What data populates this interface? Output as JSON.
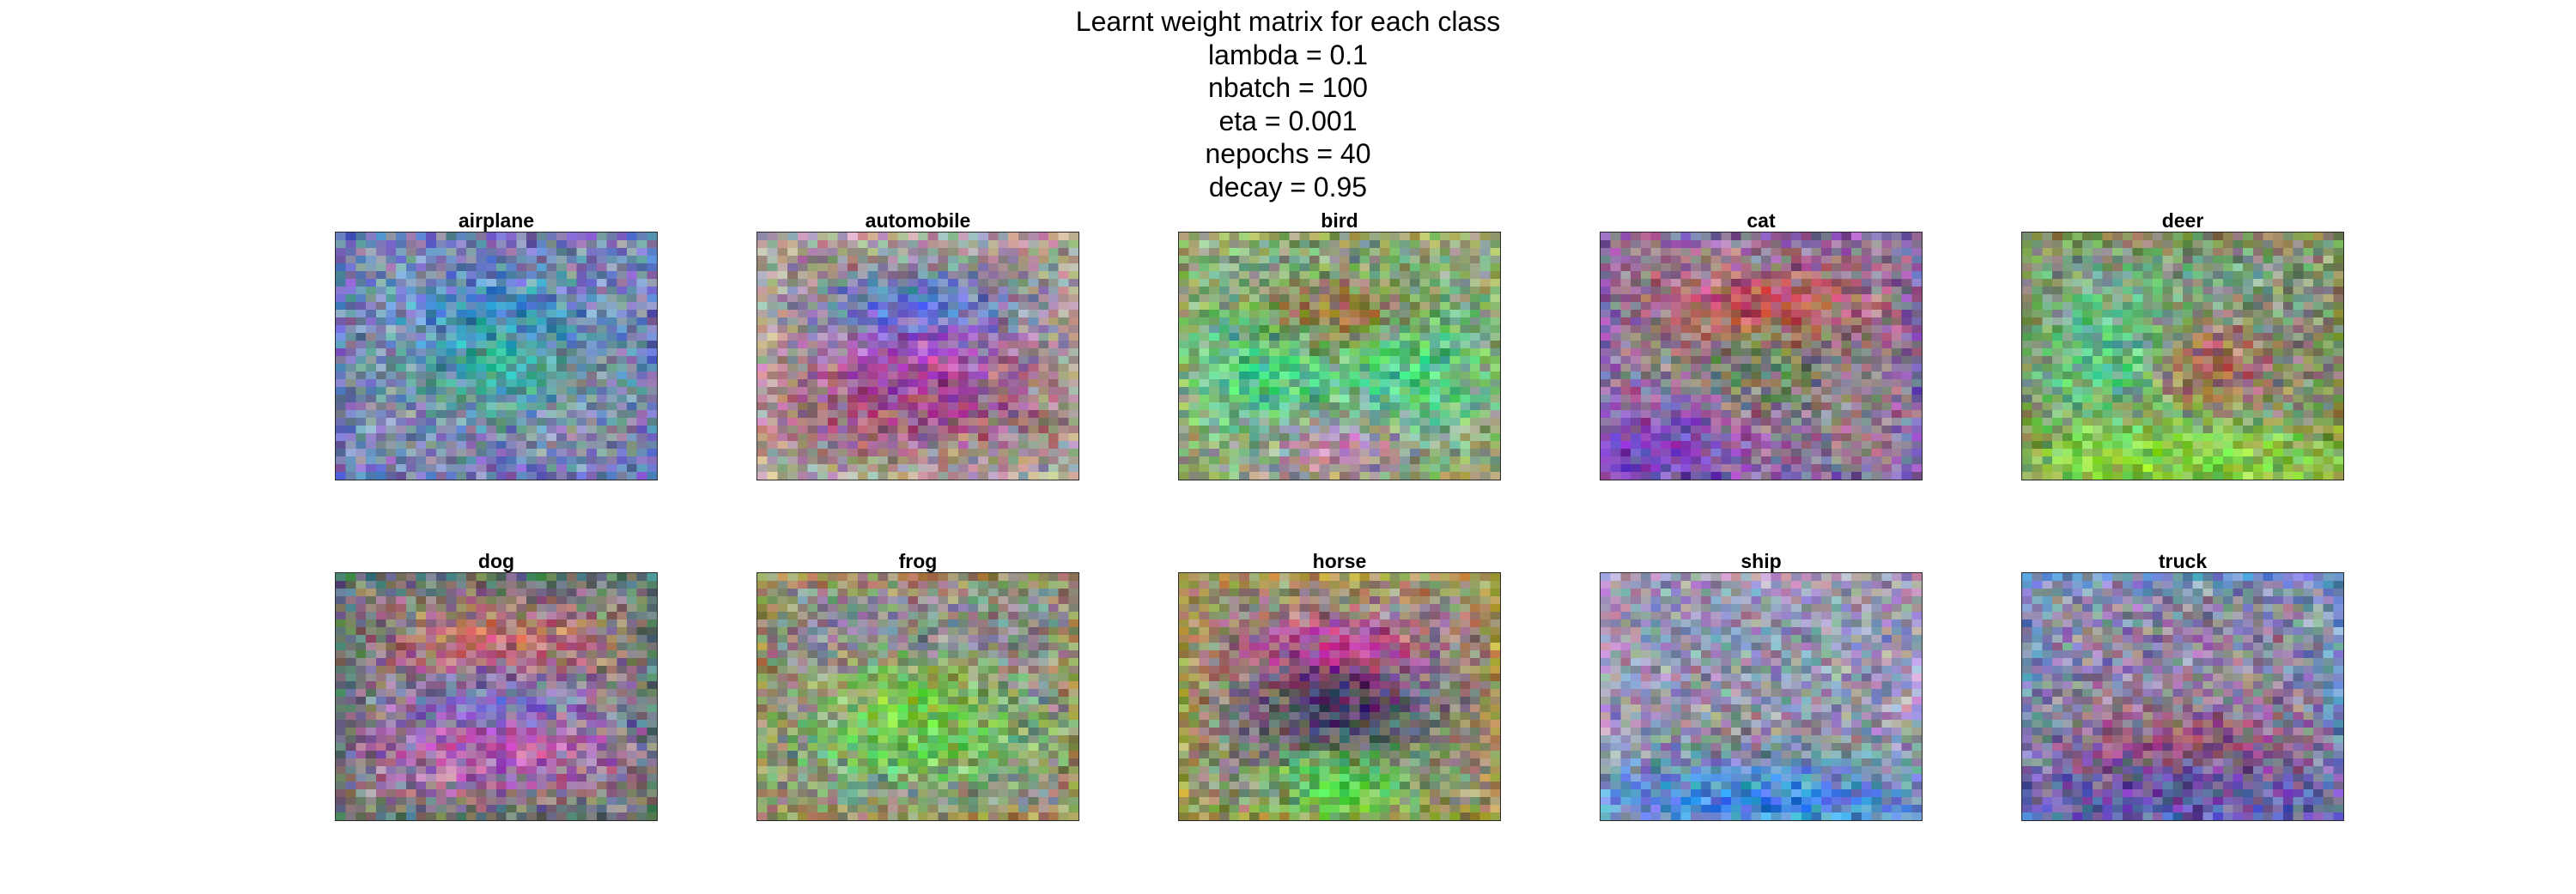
{
  "figure": {
    "title_lines": [
      "Learnt weight matrix for each class",
      "lambda = 0.1",
      "nbatch = 100",
      "eta = 0.001",
      "nepochs = 40",
      "decay = 0.95"
    ]
  },
  "chart_data": {
    "type": "heatmap",
    "grid": false,
    "image_resolution": [
      32,
      32
    ],
    "layout_rows": 2,
    "layout_cols": 5,
    "classes": [
      "airplane",
      "automobile",
      "bird",
      "cat",
      "deer",
      "dog",
      "frog",
      "horse",
      "ship",
      "truck"
    ],
    "panels": [
      {
        "title": "airplane",
        "base_color": "#8a8eae",
        "border_color": "#5868b8",
        "blobs": [
          {
            "color": "#2e8ad8",
            "region": "upper-center"
          },
          {
            "color": "#2aa890",
            "region": "center"
          }
        ]
      },
      {
        "title": "automobile",
        "base_color": "#9e9088",
        "border_color": "#c2bcb0",
        "blobs": [
          {
            "color": "#2f78e8",
            "region": "upper-center"
          },
          {
            "color": "#c23ec6",
            "region": "center"
          },
          {
            "color": "#9a4a7a",
            "region": "lower-center"
          }
        ]
      },
      {
        "title": "bird",
        "base_color": "#8aa884",
        "border_color": "#a4a464",
        "blobs": [
          {
            "color": "#3ae08a",
            "region": "center-left"
          },
          {
            "color": "#3ae08a",
            "region": "center-right"
          },
          {
            "color": "#a06a3a",
            "region": "upper-center"
          },
          {
            "color": "#c27ab0",
            "region": "bottom-center"
          }
        ]
      },
      {
        "title": "cat",
        "base_color": "#9a7e92",
        "border_color": "#7a5ab0",
        "blobs": [
          {
            "color": "#d84444",
            "region": "upper-center"
          },
          {
            "color": "#6a8a58",
            "region": "center"
          },
          {
            "color": "#7a3ac6",
            "region": "bottom-left"
          }
        ]
      },
      {
        "title": "deer",
        "base_color": "#7e9c84",
        "border_color": "#8a7a3a",
        "blobs": [
          {
            "color": "#d43a3a",
            "region": "center"
          },
          {
            "color": "#4ad48a",
            "region": "center-left"
          },
          {
            "color": "#8ae032",
            "region": "bottom"
          }
        ]
      },
      {
        "title": "dog",
        "base_color": "#8e8088",
        "border_color": "#3a6a5a",
        "blobs": [
          {
            "color": "#e45a4a",
            "region": "upper-center"
          },
          {
            "color": "#5a78d8",
            "region": "center"
          },
          {
            "color": "#c45ab4",
            "region": "lower-center"
          }
        ]
      },
      {
        "title": "frog",
        "base_color": "#8c8a96",
        "border_color": "#a0903a",
        "blobs": [
          {
            "color": "#7adc28",
            "region": "center"
          },
          {
            "color": "#6ac858",
            "region": "lower-center"
          }
        ]
      },
      {
        "title": "horse",
        "base_color": "#8c8e80",
        "border_color": "#c0a030",
        "blobs": [
          {
            "color": "#e03aa6",
            "region": "upper-center"
          },
          {
            "color": "#3a2a5a",
            "region": "center"
          },
          {
            "color": "#4ae04a",
            "region": "bottom-center"
          }
        ]
      },
      {
        "title": "ship",
        "base_color": "#9098b0",
        "border_color": "#c0a0c0",
        "blobs": [
          {
            "color": "#9a8a8a",
            "region": "lower-center"
          },
          {
            "color": "#2a8ae8",
            "region": "bottom"
          }
        ]
      },
      {
        "title": "truck",
        "base_color": "#8e86a0",
        "border_color": "#5a9ad8",
        "blobs": [
          {
            "color": "#9a4a6a",
            "region": "lower-center"
          },
          {
            "color": "#5a4aa8",
            "region": "bottom"
          }
        ]
      }
    ]
  }
}
